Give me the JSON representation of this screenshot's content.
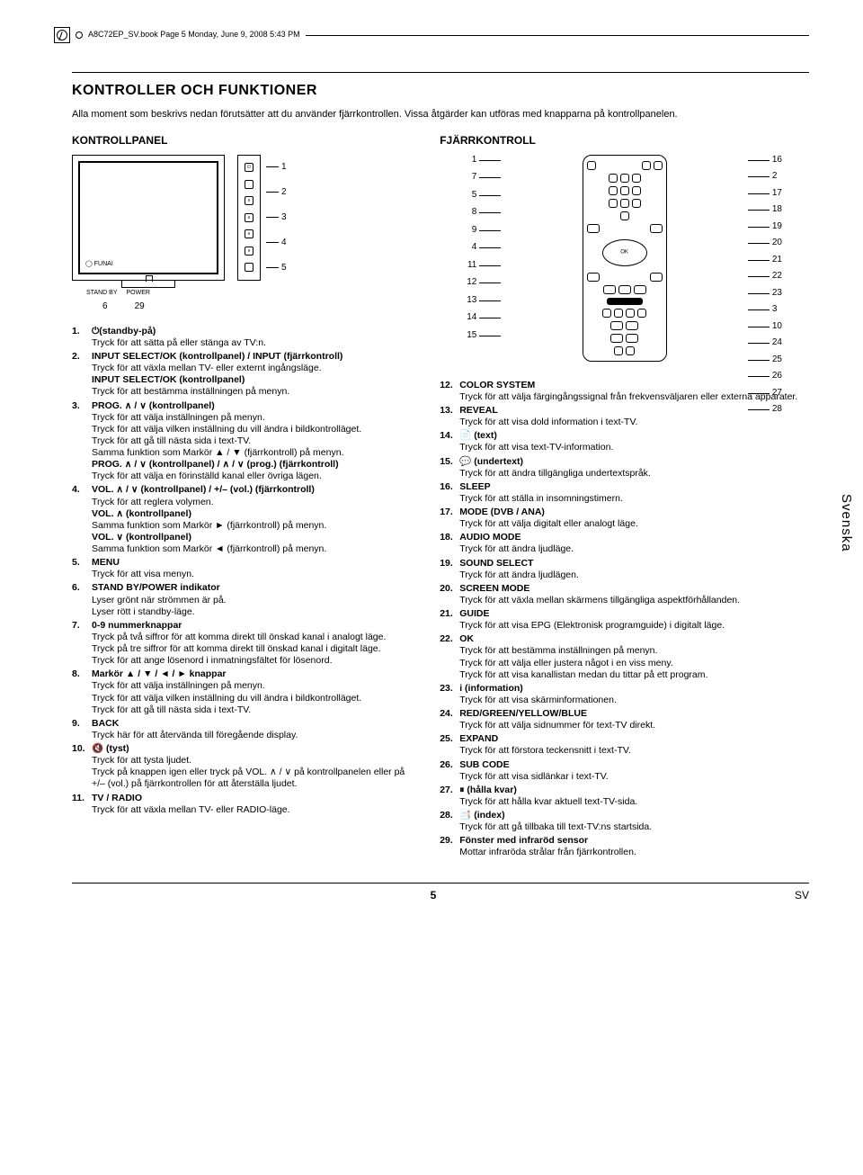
{
  "header": {
    "bookline": "A8C72EP_SV.book  Page 5  Monday, June 9, 2008  5:43 PM"
  },
  "page": {
    "title": "KONTROLLER OCH FUNKTIONER",
    "intro": "Alla moment som beskrivs nedan förutsätter att du använder fjärrkontrollen. Vissa åtgärder kan utföras med knapparna på kontrollpanelen.",
    "leftHeading": "KONTROLLPANEL",
    "rightHeading": "FJÄRRKONTROLL",
    "sideTab": "Svenska",
    "pageNumber": "5",
    "langCode": "SV"
  },
  "panelCallouts": {
    "c1": "1",
    "c2": "2",
    "c3": "3",
    "c4": "4",
    "c5": "5",
    "b6": "6",
    "b29": "29"
  },
  "irLabels": {
    "left": "STAND BY",
    "right": "POWER"
  },
  "remoteCallouts": {
    "left": [
      "1",
      "7",
      "5",
      "8",
      "9",
      "4",
      "11",
      "12",
      "13",
      "14",
      "15"
    ],
    "right": [
      "16",
      "2",
      "17",
      "18",
      "19",
      "20",
      "21",
      "22",
      "23",
      "3",
      "10",
      "24",
      "25",
      "26",
      "27",
      "28"
    ]
  },
  "leftItems": [
    {
      "n": "1.",
      "title": "⏻(standby-på)",
      "desc": "Tryck för att sätta på eller stänga av TV:n."
    },
    {
      "n": "2.",
      "title": "INPUT SELECT/OK (kontrollpanel) / INPUT (fjärrkontroll)",
      "desc": "Tryck för att växla mellan TV- eller externt ingångsläge.\nINPUT SELECT/OK (kontrollpanel)\nTryck för att bestämma inställningen på menyn."
    },
    {
      "n": "3.",
      "title": "PROG. ∧ / ∨ (kontrollpanel)",
      "desc": "Tryck för att välja inställningen på menyn.\nTryck för att välja vilken inställning du vill ändra i bildkontrolläget.\nTryck för att gå till nästa sida i text-TV.\nSamma funktion som Markör ▲ / ▼ (fjärrkontroll) på menyn.\nPROG. ∧ / ∨ (kontrollpanel) / ∧ / ∨ (prog.) (fjärrkontroll)\nTryck för att välja en förinställd kanal eller övriga lägen."
    },
    {
      "n": "4.",
      "title": "VOL. ∧ / ∨ (kontrollpanel) / +/– (vol.) (fjärrkontroll)",
      "desc": "Tryck för att reglera volymen.\nVOL. ∧ (kontrollpanel)\nSamma funktion som Markör ► (fjärrkontroll) på menyn.\nVOL. ∨ (kontrollpanel)\nSamma funktion som Markör ◄ (fjärrkontroll) på menyn."
    },
    {
      "n": "5.",
      "title": "MENU",
      "desc": "Tryck för att visa menyn."
    },
    {
      "n": "6.",
      "title": "STAND BY/POWER indikator",
      "desc": "Lyser grönt när strömmen är på.\nLyser rött i standby-läge."
    },
    {
      "n": "7.",
      "title": "0-9 nummerknappar",
      "desc": "Tryck på två siffror för att komma direkt till önskad kanal i analogt läge.\nTryck på tre siffror för att komma direkt till önskad kanal i digitalt läge.\nTryck för att ange lösenord i inmatningsfältet för lösenord."
    },
    {
      "n": "8.",
      "title": "Markör ▲ / ▼ / ◄ / ► knappar",
      "desc": "Tryck för att välja inställningen på menyn.\nTryck för att välja vilken inställning du vill ändra i bildkontrolläget.\nTryck för att gå till nästa sida i text-TV."
    },
    {
      "n": "9.",
      "title": "BACK",
      "desc": "Tryck här för att återvända till föregående display."
    },
    {
      "n": "10.",
      "title": "🔇 (tyst)",
      "desc": "Tryck för att tysta ljudet.\nTryck på knappen igen eller tryck på VOL. ∧ / ∨ på kontrollpanelen eller på +/– (vol.) på fjärrkontrollen för att återställa ljudet."
    },
    {
      "n": "11.",
      "title": "TV / RADIO",
      "desc": "Tryck för att växla mellan TV- eller RADIO-läge."
    }
  ],
  "rightItems": [
    {
      "n": "12.",
      "title": "COLOR SYSTEM",
      "desc": "Tryck för att välja färgingångssignal från frekvensväljaren eller externa apparater."
    },
    {
      "n": "13.",
      "title": "REVEAL",
      "desc": "Tryck för att visa dold information i text-TV."
    },
    {
      "n": "14.",
      "title": "📄 (text)",
      "desc": "Tryck för att visa text-TV-information."
    },
    {
      "n": "15.",
      "title": "💬 (undertext)",
      "desc": "Tryck för att ändra tillgängliga undertextspråk."
    },
    {
      "n": "16.",
      "title": "SLEEP",
      "desc": "Tryck för att ställa in insomningstimern."
    },
    {
      "n": "17.",
      "title": "MODE (DVB / ANA)",
      "desc": "Tryck för att välja digitalt eller analogt läge."
    },
    {
      "n": "18.",
      "title": "AUDIO MODE",
      "desc": "Tryck för att ändra ljudläge."
    },
    {
      "n": "19.",
      "title": "SOUND SELECT",
      "desc": "Tryck för att ändra ljudlägen."
    },
    {
      "n": "20.",
      "title": "SCREEN MODE",
      "desc": "Tryck för att växla mellan skärmens tillgängliga aspektförhållanden."
    },
    {
      "n": "21.",
      "title": "GUIDE",
      "desc": "Tryck för att visa EPG (Elektronisk programguide) i digitalt läge."
    },
    {
      "n": "22.",
      "title": "OK",
      "desc": "Tryck för att bestämma inställningen på menyn.\nTryck för att välja eller justera något i en viss meny.\nTryck för att visa kanallistan medan du tittar på ett program."
    },
    {
      "n": "23.",
      "title": "i (information)",
      "desc": "Tryck för att visa skärminformationen."
    },
    {
      "n": "24.",
      "title": "RED/GREEN/YELLOW/BLUE",
      "desc": "Tryck för att välja sidnummer för text-TV direkt."
    },
    {
      "n": "25.",
      "title": "EXPAND",
      "desc": "Tryck för att förstora teckensnitt i text-TV."
    },
    {
      "n": "26.",
      "title": "SUB CODE",
      "desc": "Tryck för att visa sidlänkar i text-TV."
    },
    {
      "n": "27.",
      "title": "⏸ (hålla kvar)",
      "desc": "Tryck för att hålla kvar aktuell text-TV-sida."
    },
    {
      "n": "28.",
      "title": "📑 (index)",
      "desc": "Tryck för att gå tillbaka till text-TV:ns startsida."
    },
    {
      "n": "29.",
      "title": "Fönster med infraröd sensor",
      "desc": "Mottar infraröda strålar från fjärrkontrollen."
    }
  ]
}
